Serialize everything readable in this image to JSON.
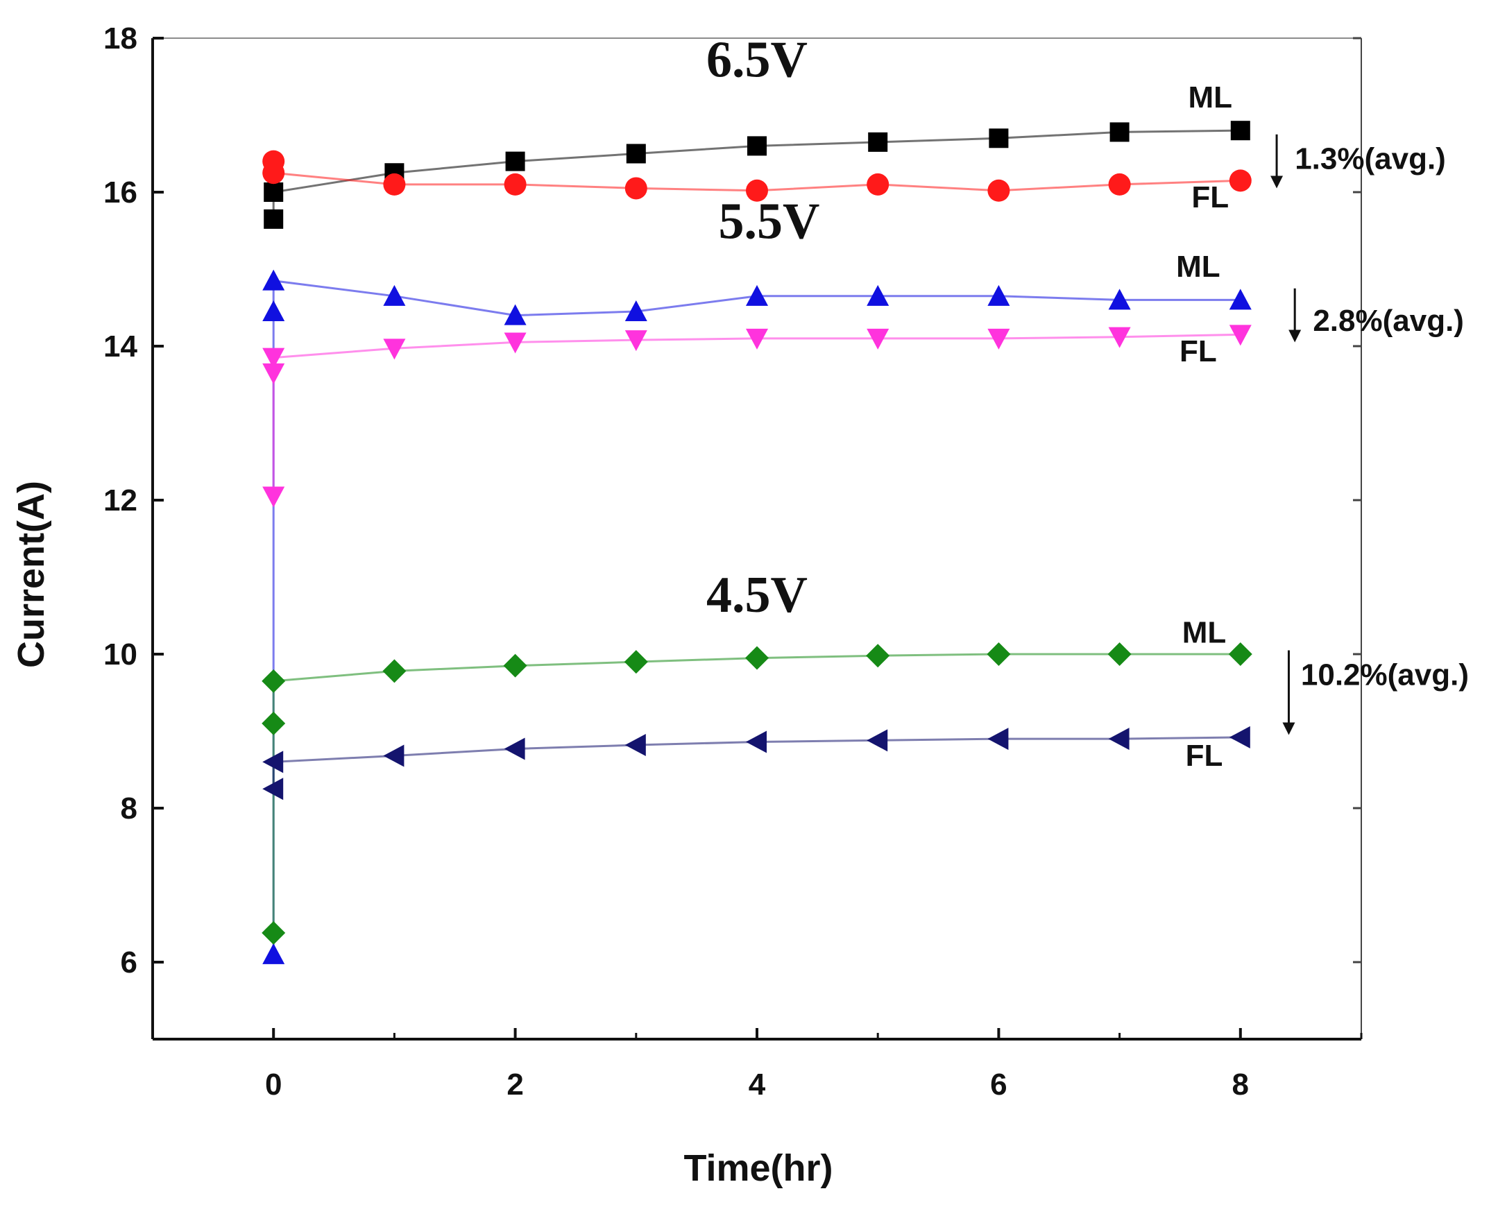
{
  "chart_data": {
    "type": "line",
    "xlabel": "Time(hr)",
    "ylabel": "Current(A)",
    "xlim": [
      -1,
      9
    ],
    "ylim": [
      5,
      18
    ],
    "xticks": [
      0,
      2,
      4,
      6,
      8
    ],
    "yticks": [
      6,
      8,
      10,
      12,
      14,
      16,
      18
    ],
    "grid": false,
    "series": [
      {
        "name": "6.5V ML",
        "color": "#000000",
        "marker": "square",
        "x": [
          0,
          0,
          1,
          2,
          3,
          4,
          5,
          6,
          7,
          8
        ],
        "y": [
          15.65,
          16.0,
          16.25,
          16.4,
          16.5,
          16.6,
          16.65,
          16.7,
          16.78,
          16.8
        ]
      },
      {
        "name": "6.5V FL",
        "color": "#ff1a1a",
        "marker": "circle",
        "x": [
          0,
          0,
          1,
          2,
          3,
          4,
          5,
          6,
          7,
          8
        ],
        "y": [
          16.4,
          16.25,
          16.1,
          16.1,
          16.05,
          16.02,
          16.1,
          16.02,
          16.1,
          16.15
        ]
      },
      {
        "name": "5.5V ML",
        "color": "#1010e0",
        "marker": "triangle-up",
        "x": [
          0,
          0,
          0,
          1,
          2,
          3,
          4,
          5,
          6,
          7,
          8
        ],
        "y": [
          6.1,
          14.45,
          14.85,
          14.65,
          14.4,
          14.45,
          14.65,
          14.65,
          14.65,
          14.6,
          14.6
        ]
      },
      {
        "name": "5.5V FL",
        "color": "#ff33dd",
        "marker": "triangle-down",
        "x": [
          0,
          0,
          0,
          1,
          2,
          3,
          4,
          5,
          6,
          7,
          8
        ],
        "y": [
          12.05,
          13.65,
          13.85,
          13.97,
          14.05,
          14.08,
          14.1,
          14.1,
          14.1,
          14.12,
          14.15
        ]
      },
      {
        "name": "4.5V ML",
        "color": "#168a16",
        "marker": "diamond",
        "x": [
          0,
          0,
          0,
          1,
          2,
          3,
          4,
          5,
          6,
          7,
          8
        ],
        "y": [
          6.38,
          9.1,
          9.65,
          9.78,
          9.85,
          9.9,
          9.95,
          9.98,
          10.0,
          10.0,
          10.0
        ]
      },
      {
        "name": "4.5V FL",
        "color": "#14146e",
        "marker": "triangle-left",
        "x": [
          0,
          0,
          1,
          2,
          3,
          4,
          5,
          6,
          7,
          8
        ],
        "y": [
          8.25,
          8.6,
          8.68,
          8.77,
          8.82,
          8.86,
          8.88,
          8.9,
          8.9,
          8.92
        ]
      }
    ],
    "annotations": [
      {
        "text": "6.5V",
        "x": 4.0,
        "y": 17.5,
        "kind": "voltage"
      },
      {
        "text": "5.5V",
        "x": 4.1,
        "y": 15.4,
        "kind": "voltage"
      },
      {
        "text": "4.5V",
        "x": 4.0,
        "y": 10.55,
        "kind": "voltage"
      },
      {
        "text": "ML",
        "x": 7.75,
        "y": 17.1,
        "kind": "tag"
      },
      {
        "text": "FL",
        "x": 7.75,
        "y": 15.8,
        "kind": "tag"
      },
      {
        "text": "ML",
        "x": 7.65,
        "y": 14.9,
        "kind": "tag"
      },
      {
        "text": "FL",
        "x": 7.65,
        "y": 13.8,
        "kind": "tag"
      },
      {
        "text": "ML",
        "x": 7.7,
        "y": 10.15,
        "kind": "tag"
      },
      {
        "text": "FL",
        "x": 7.7,
        "y": 8.55,
        "kind": "tag"
      },
      {
        "text": "1.3%(avg.)",
        "x": 8.45,
        "y": 16.3,
        "kind": "percent"
      },
      {
        "text": "2.8%(avg.)",
        "x": 8.6,
        "y": 14.2,
        "kind": "percent"
      },
      {
        "text": "10.2%(avg.)",
        "x": 8.5,
        "y": 9.6,
        "kind": "percent"
      }
    ],
    "drop_arrows": [
      {
        "x": 8.3,
        "y_from": 16.75,
        "y_to": 16.05
      },
      {
        "x": 8.45,
        "y_from": 14.75,
        "y_to": 14.05
      },
      {
        "x": 8.4,
        "y_from": 10.05,
        "y_to": 8.95
      }
    ]
  }
}
